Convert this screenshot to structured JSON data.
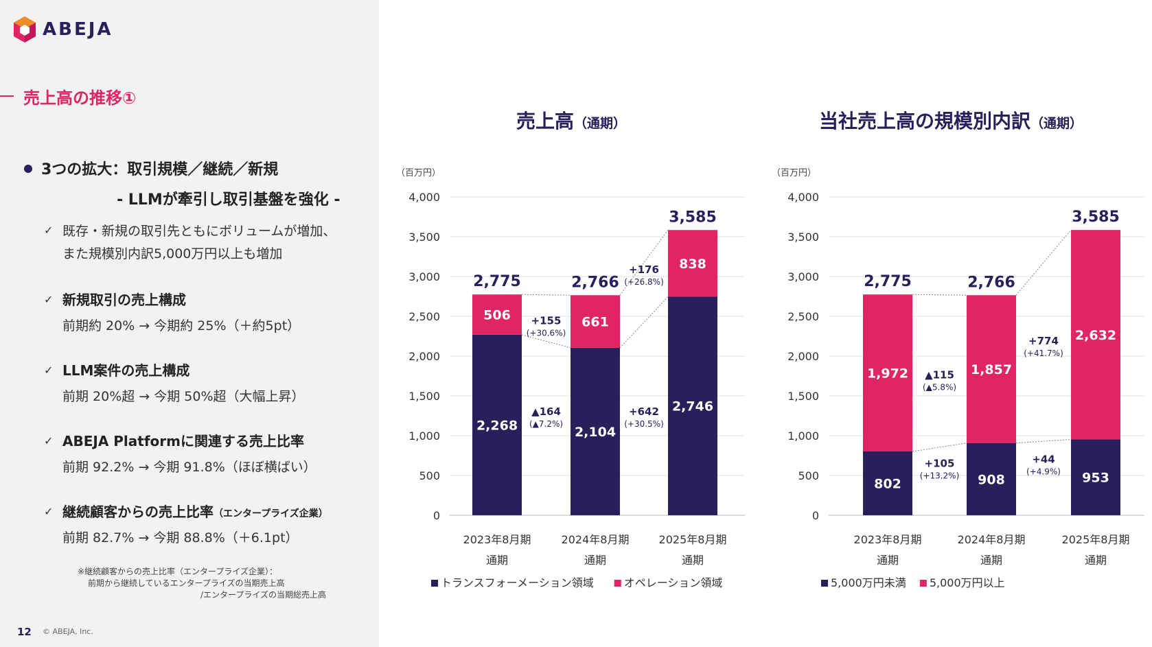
{
  "header": {
    "logo_text": "ABEJA"
  },
  "section_title": "売上高の推移①",
  "bullet": {
    "main": "3つの拡大：取引規模／継続／新規",
    "sub": "- LLMが牽引し取引基盤を強化 -"
  },
  "items": [
    {
      "line1": "既存・新規の取引先ともにボリュームが増加、",
      "line2": "また規模別内訳5,000万円以上も増加"
    },
    {
      "title": "新規取引の売上構成",
      "detail": "前期約 20% → 今期約 25%（＋約5pt）"
    },
    {
      "title": "LLM案件の売上構成",
      "detail": "前期 20%超 → 今期 50%超（大幅上昇）"
    },
    {
      "title": "ABEJA Platformに関連する売上比率",
      "detail": "前期 92.2% → 今期 91.8%（ほぼ横ばい）"
    },
    {
      "title": "継続顧客からの売上比率",
      "title_small": "（エンタープライズ企業）",
      "detail": "前期 82.7% → 今期 88.8%（＋6.1pt）"
    }
  ],
  "notes": [
    "※継続顧客からの売上比率（エンタープライズ企業）：",
    "前期から継続しているエンタープライズの当期売上高",
    "/エンタープライズの当期総売上高"
  ],
  "footer": {
    "page": "12",
    "copyright": "© ABEJA, Inc."
  },
  "colors": {
    "navy": "#27205a",
    "pink": "#e02565",
    "accent": "#e02565"
  },
  "chart_data": [
    {
      "type": "bar",
      "stacked": true,
      "title": "売上高",
      "title_small": "（通期）",
      "unit": "（百万円）",
      "categories": [
        [
          "2023年8月期",
          "通期"
        ],
        [
          "2024年8月期",
          "通期"
        ],
        [
          "2025年8月期",
          "通期"
        ]
      ],
      "ylim": [
        0,
        4000
      ],
      "yticks": [
        "0",
        "500",
        "1,000",
        "1,500",
        "2,000",
        "2,500",
        "3,000",
        "3,500",
        "4,000"
      ],
      "grid": true,
      "legend_position": "bottom",
      "series": [
        {
          "name": "トランスフォーメーション領域",
          "color": "#27205a",
          "values": [
            2268,
            2104,
            2746
          ],
          "labels": [
            "2,268",
            "2,104",
            "2,746"
          ]
        },
        {
          "name": "オペレーション領域",
          "color": "#e02565",
          "values": [
            506,
            661,
            838
          ],
          "labels": [
            "506",
            "661",
            "838"
          ]
        }
      ],
      "totals": [
        2775,
        2766,
        3585
      ],
      "total_labels": [
        "2,775",
        "2,766",
        "3,585"
      ],
      "annotations": [
        {
          "between": 0,
          "series": 1,
          "line1": "+155",
          "line2": "(+30.6%)"
        },
        {
          "between": 0,
          "series": 0,
          "line1": "▲164",
          "line2": "(▲7.2%)"
        },
        {
          "between": 1,
          "series": 1,
          "line1": "+176",
          "line2": "(+26.8%)"
        },
        {
          "between": 1,
          "series": 0,
          "line1": "+642",
          "line2": "(+30.5%)"
        }
      ]
    },
    {
      "type": "bar",
      "stacked": true,
      "title": "当社売上高の規模別内訳",
      "title_small": "（通期）",
      "unit": "（百万円）",
      "categories": [
        [
          "2023年8月期",
          "通期"
        ],
        [
          "2024年8月期",
          "通期"
        ],
        [
          "2025年8月期",
          "通期"
        ]
      ],
      "ylim": [
        0,
        4000
      ],
      "yticks": [
        "0",
        "500",
        "1,000",
        "1,500",
        "2,000",
        "2,500",
        "3,000",
        "3,500",
        "4,000"
      ],
      "grid": true,
      "legend_position": "bottom",
      "series": [
        {
          "name": "5,000万円未満",
          "color": "#27205a",
          "values": [
            802,
            908,
            953
          ],
          "labels": [
            "802",
            "908",
            "953"
          ]
        },
        {
          "name": "5,000万円以上",
          "color": "#e02565",
          "values": [
            1972,
            1857,
            2632
          ],
          "labels": [
            "1,972",
            "1,857",
            "2,632"
          ]
        }
      ],
      "totals": [
        2775,
        2766,
        3585
      ],
      "total_labels": [
        "2,775",
        "2,766",
        "3,585"
      ],
      "annotations": [
        {
          "between": 0,
          "series": 1,
          "line1": "▲115",
          "line2": "(▲5.8%)"
        },
        {
          "between": 0,
          "series": 0,
          "line1": "+105",
          "line2": "(+13.2%)"
        },
        {
          "between": 1,
          "series": 1,
          "line1": "+774",
          "line2": "(+41.7%)"
        },
        {
          "between": 1,
          "series": 0,
          "line1": "+44",
          "line2": "(+4.9%)"
        }
      ]
    }
  ]
}
